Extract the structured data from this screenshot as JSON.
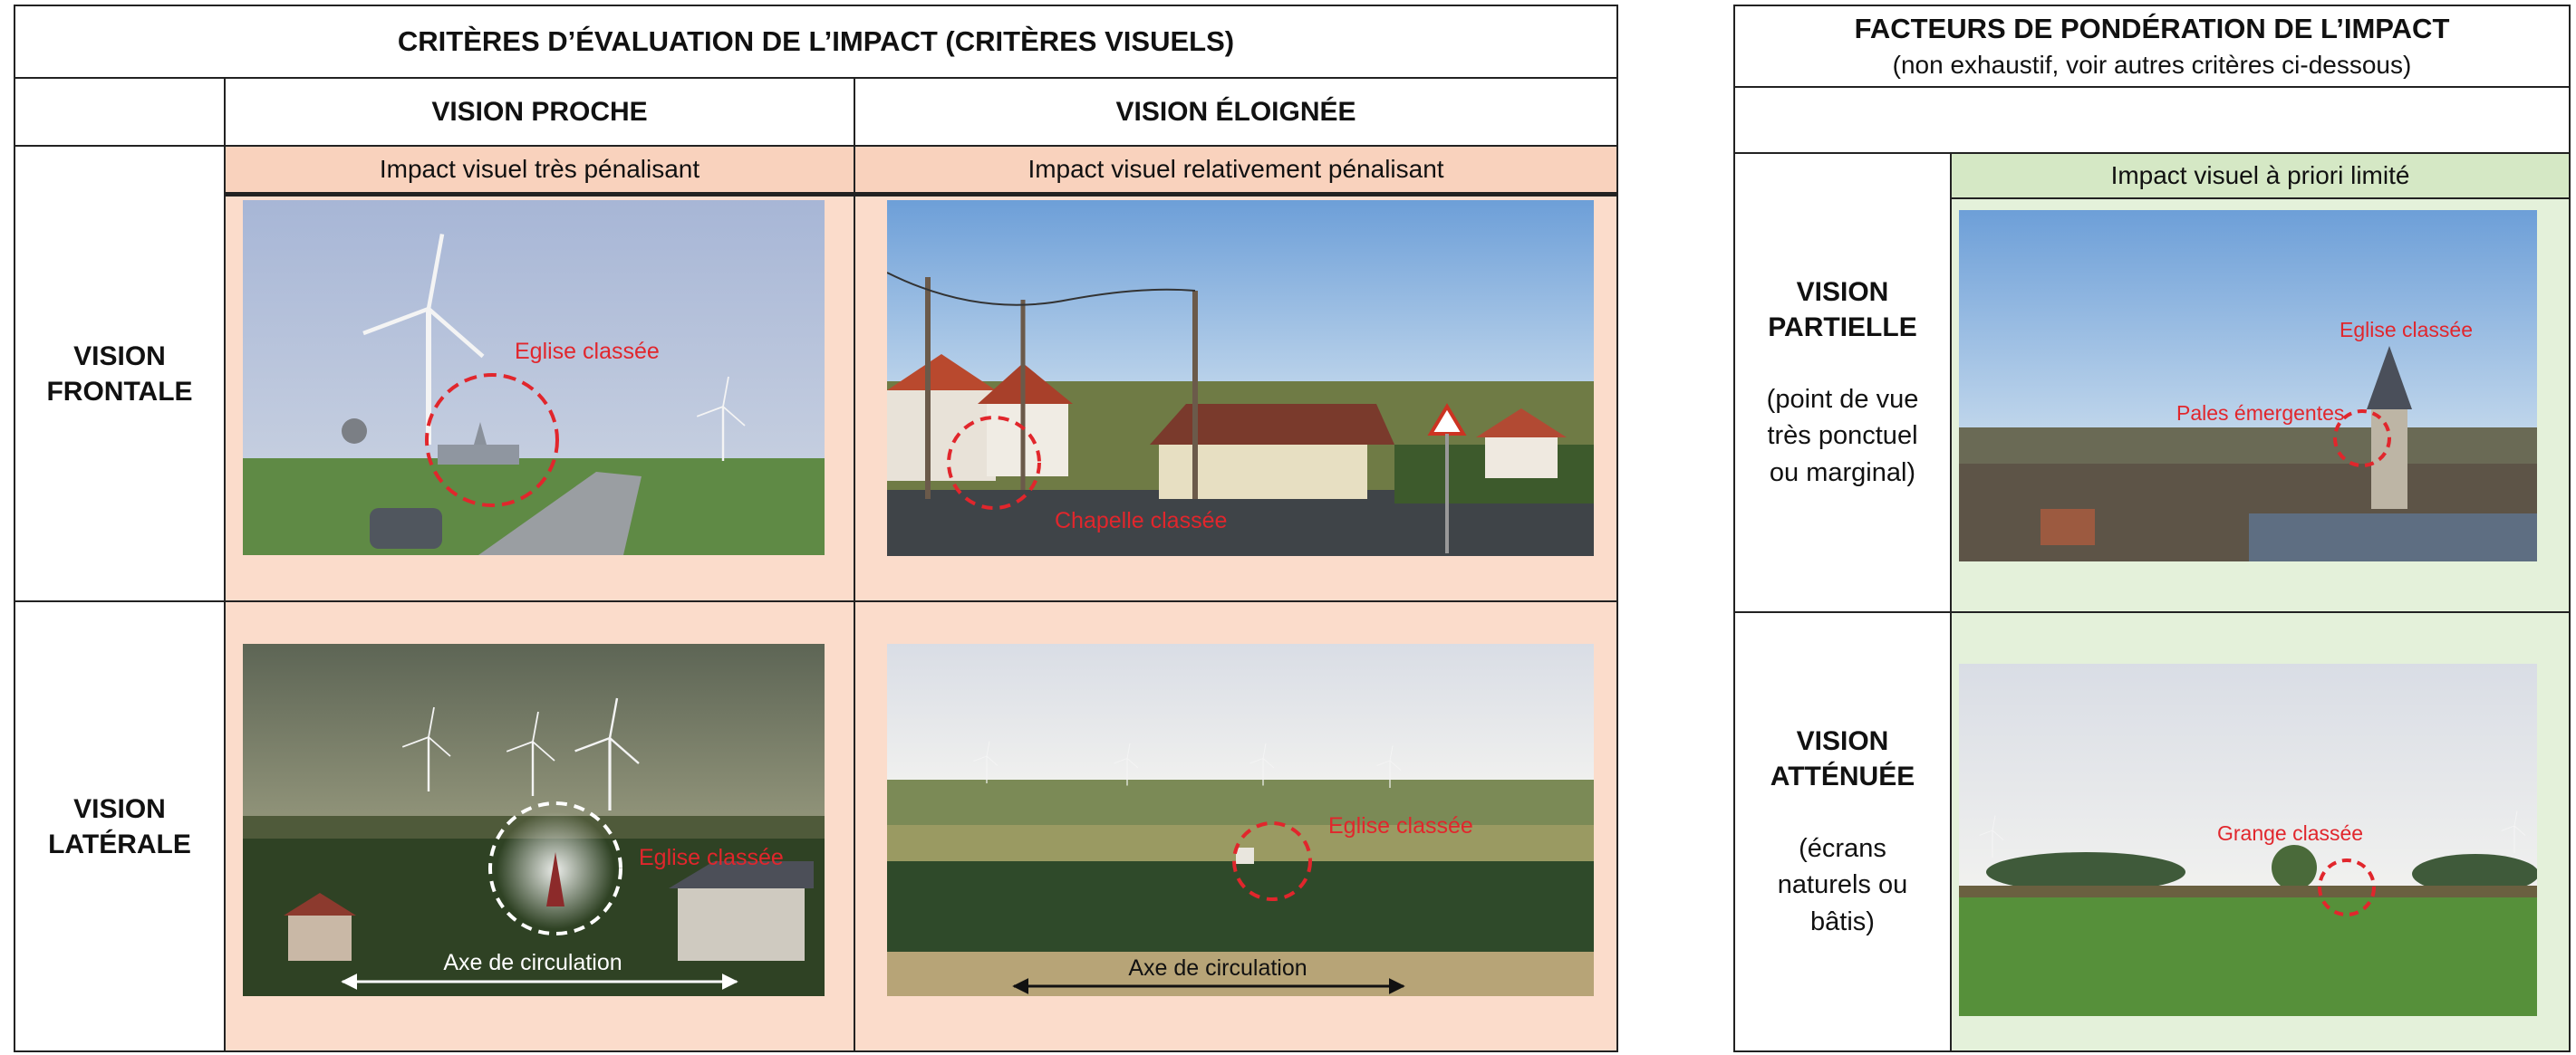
{
  "left_table": {
    "title": "CRITÈRES D’ÉVALUATION DE L’IMPACT (CRITÈRES VISUELS)",
    "columns": [
      "VISION PROCHE",
      "VISION ÉLOIGNÉE"
    ],
    "impacts": [
      "Impact visuel très pénalisant",
      "Impact visuel relativement pénalisant"
    ],
    "rows": [
      {
        "label": "VISION FRONTALE",
        "photos": [
          {
            "annotations": [
              "Eglise classée"
            ]
          },
          {
            "annotations": [
              "Chapelle classée"
            ]
          }
        ]
      },
      {
        "label": "VISION LATÉRALE",
        "photos": [
          {
            "annotations": [
              "Eglise classée",
              "Axe de circulation"
            ]
          },
          {
            "annotations": [
              "Eglise classée",
              "Axe de circulation"
            ]
          }
        ]
      }
    ]
  },
  "right_table": {
    "title": "FACTEURS DE PONDÉRATION DE L’IMPACT",
    "subtitle": "(non exhaustif, voir autres critères ci-dessous)",
    "impact": "Impact visuel à priori limité",
    "rows": [
      {
        "label": "VISION PARTIELLE",
        "note": "(point de vue très ponctuel ou marginal)",
        "annotations": [
          "Eglise classée",
          "Pales émergentes"
        ]
      },
      {
        "label": "VISION ATTÉNUÉE",
        "note": "(écrans naturels ou bâtis)",
        "annotations": [
          "Grange classée"
        ]
      }
    ]
  }
}
